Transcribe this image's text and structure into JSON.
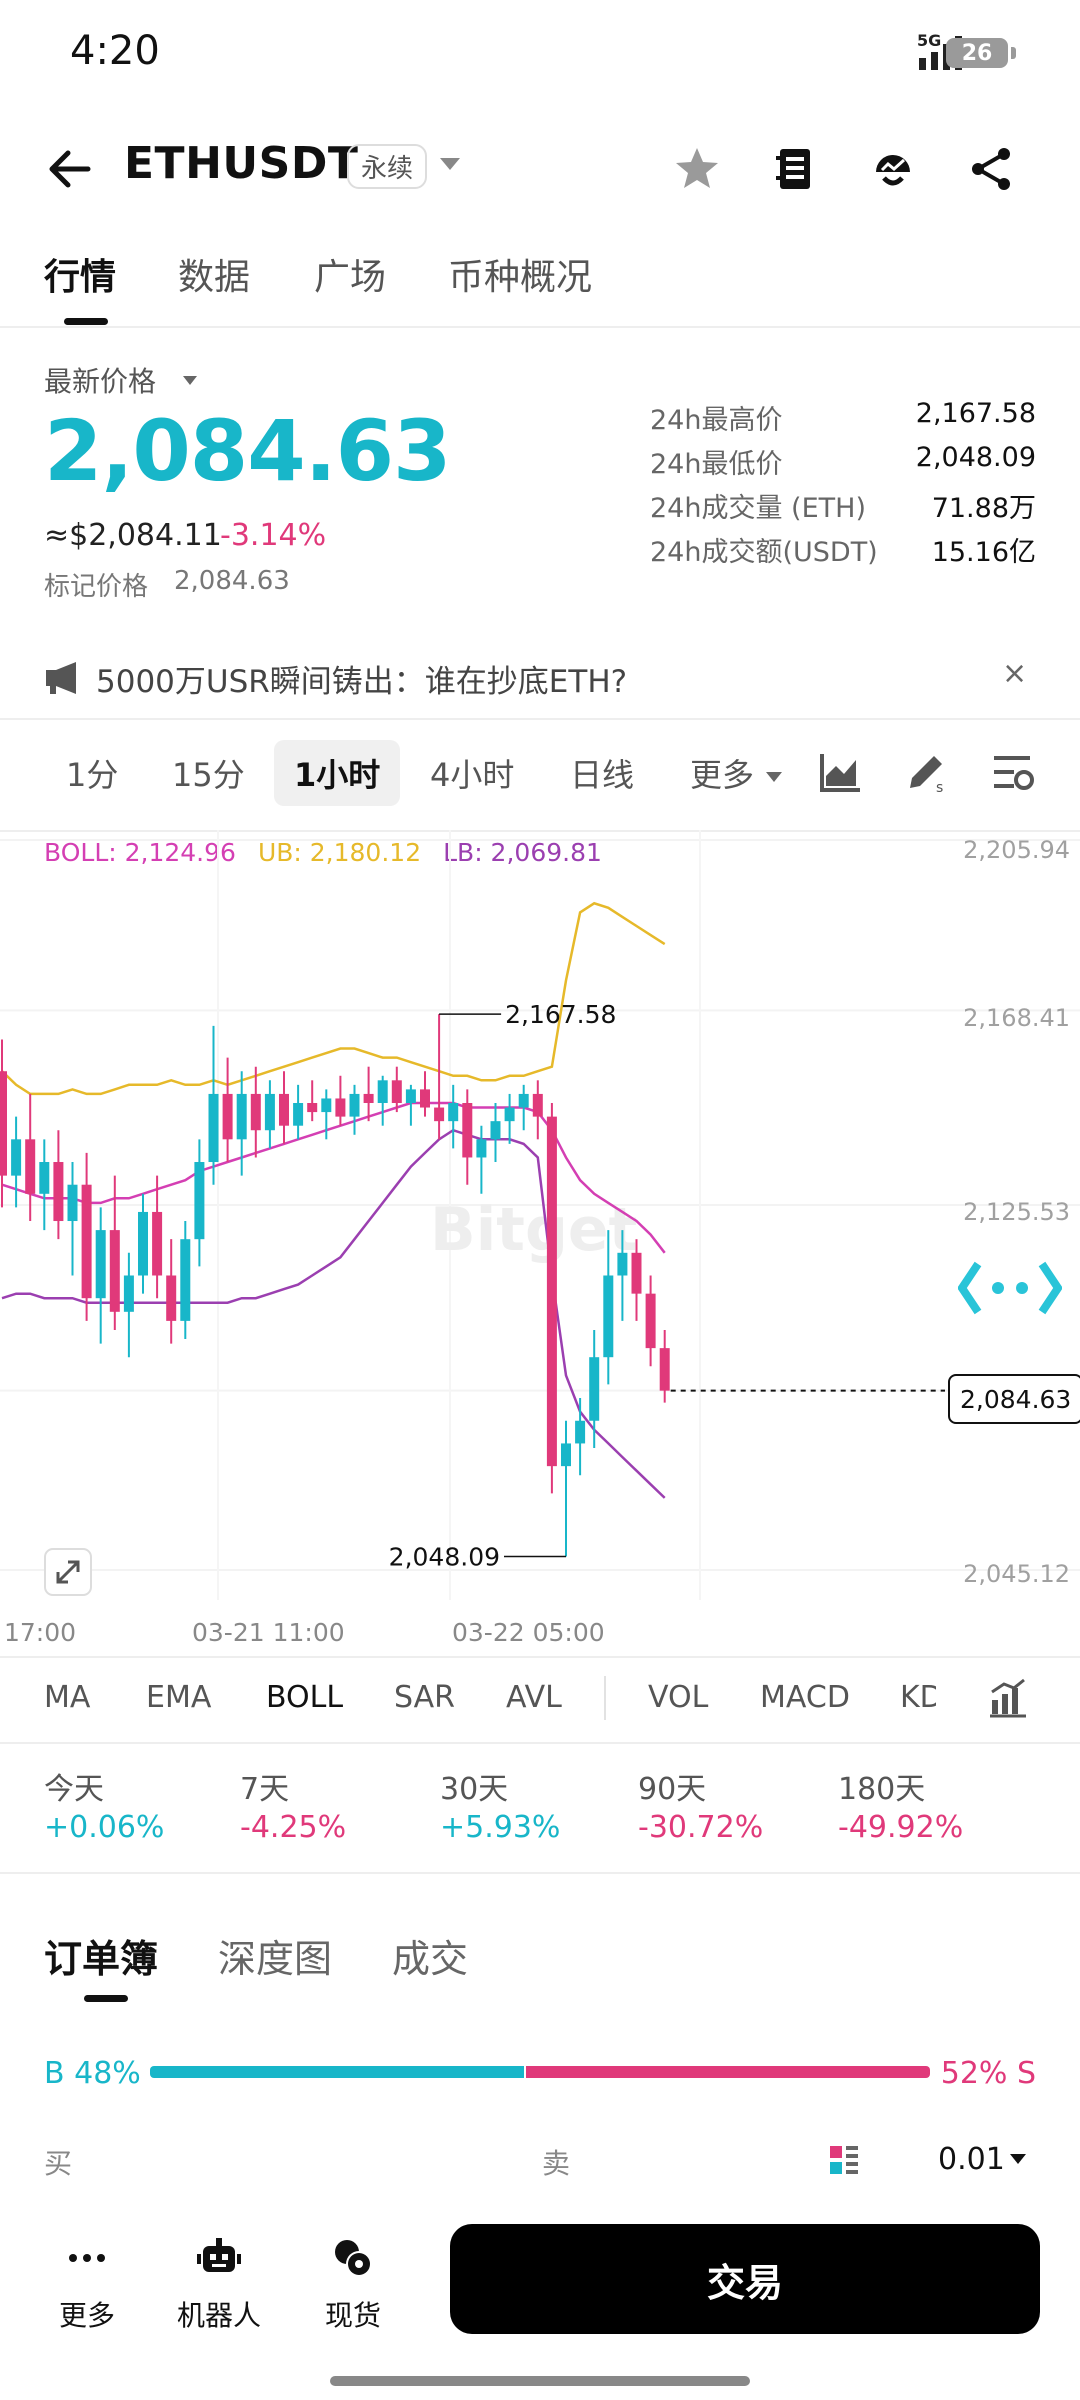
{
  "status_bar": {
    "time": "4:20",
    "network": "5G",
    "battery": "26"
  },
  "header": {
    "symbol": "ETHUSDT",
    "badge": "永续"
  },
  "main_tabs": [
    "行情",
    "数据",
    "广场",
    "币种概况"
  ],
  "price": {
    "label": "最新价格",
    "last": "2,084.63",
    "usd": "≈$2,084.11",
    "change": "-3.14%",
    "mark_label": "标记价格",
    "mark_value": "2,084.63"
  },
  "stats": [
    {
      "label": "24h最高价",
      "value": "2,167.58"
    },
    {
      "label": "24h最低价",
      "value": "2,048.09"
    },
    {
      "label": "24h成交量 (ETH)",
      "value": "71.88万"
    },
    {
      "label": "24h成交额(USDT)",
      "value": "15.16亿"
    }
  ],
  "news": {
    "text": "5000万USR瞬间铸出：谁在抄底ETH?",
    "close": "×"
  },
  "timeframes": [
    "1分",
    "15分",
    "1小时",
    "4小时",
    "日线",
    "更多"
  ],
  "timeframe_active": "1小时",
  "boll": {
    "boll": "BOLL: 2,124.96",
    "ub": "UB: 2,180.12",
    "lb": "LB: 2,069.81"
  },
  "colors": {
    "up": "#18b6c9",
    "down": "#e0397a",
    "ub": "#e6b92a",
    "mid": "#d43fb3",
    "lb": "#9b3fb0"
  },
  "chart_data": {
    "type": "candlestick",
    "y_axis_labels": [
      "2,205.94",
      "2,168.41",
      "2,125.53",
      "2,084.63",
      "2,045.12"
    ],
    "ylim": [
      2045.12,
      2205.94
    ],
    "x_tick_labels": [
      "17:00",
      "03-21 11:00",
      "03-22 05:00"
    ],
    "high_marker": "2,167.58",
    "low_marker": "2,048.09",
    "last_price_tag": "2,084.63",
    "watermark": "Bitget",
    "candles": [
      [
        2155,
        2162,
        2125,
        2132
      ],
      [
        2132,
        2145,
        2125,
        2140
      ],
      [
        2140,
        2150,
        2122,
        2128
      ],
      [
        2128,
        2140,
        2120,
        2135
      ],
      [
        2135,
        2142,
        2118,
        2122
      ],
      [
        2122,
        2135,
        2110,
        2130
      ],
      [
        2130,
        2137,
        2100,
        2105
      ],
      [
        2105,
        2125,
        2095,
        2120
      ],
      [
        2120,
        2132,
        2098,
        2102
      ],
      [
        2102,
        2115,
        2092,
        2110
      ],
      [
        2110,
        2128,
        2106,
        2124
      ],
      [
        2124,
        2132,
        2105,
        2110
      ],
      [
        2110,
        2118,
        2095,
        2100
      ],
      [
        2100,
        2122,
        2096,
        2118
      ],
      [
        2118,
        2140,
        2112,
        2135
      ],
      [
        2135,
        2165,
        2130,
        2150
      ],
      [
        2150,
        2158,
        2135,
        2140
      ],
      [
        2140,
        2155,
        2132,
        2150
      ],
      [
        2150,
        2156,
        2136,
        2142
      ],
      [
        2142,
        2153,
        2138,
        2150
      ],
      [
        2150,
        2155,
        2139,
        2143
      ],
      [
        2143,
        2152,
        2140,
        2148
      ],
      [
        2148,
        2153,
        2144,
        2146
      ],
      [
        2146,
        2151,
        2140,
        2149
      ],
      [
        2149,
        2154,
        2143,
        2145
      ],
      [
        2145,
        2152,
        2141,
        2150
      ],
      [
        2150,
        2156,
        2144,
        2148
      ],
      [
        2148,
        2154,
        2143,
        2153
      ],
      [
        2153,
        2156,
        2146,
        2148
      ],
      [
        2148,
        2152,
        2143,
        2151
      ],
      [
        2151,
        2155,
        2145,
        2147
      ],
      [
        2147,
        2167.58,
        2140,
        2144
      ],
      [
        2144,
        2152,
        2138,
        2148
      ],
      [
        2148,
        2151,
        2130,
        2136
      ],
      [
        2136,
        2143,
        2128,
        2140
      ],
      [
        2140,
        2148,
        2135,
        2144
      ],
      [
        2144,
        2150,
        2139,
        2147
      ],
      [
        2147,
        2152,
        2142,
        2150
      ],
      [
        2150,
        2153,
        2140,
        2145
      ],
      [
        2145,
        2148,
        2062,
        2068
      ],
      [
        2068,
        2078,
        2048.09,
        2073
      ],
      [
        2073,
        2083,
        2066,
        2078
      ],
      [
        2078,
        2098,
        2072,
        2092
      ],
      [
        2092,
        2120,
        2086,
        2110
      ],
      [
        2110,
        2120,
        2100,
        2115
      ],
      [
        2115,
        2118,
        2100,
        2106
      ],
      [
        2106,
        2110,
        2090,
        2094
      ],
      [
        2094,
        2098,
        2082,
        2084.63
      ]
    ],
    "ub_line": [
      2155,
      2152,
      2150,
      2150,
      2150,
      2151,
      2150,
      2150,
      2151,
      2152,
      2152,
      2152,
      2153,
      2152,
      2152,
      2153,
      2152,
      2153,
      2154,
      2155,
      2156,
      2157,
      2158,
      2159,
      2160,
      2160,
      2159,
      2158,
      2158,
      2157,
      2156,
      2155,
      2154,
      2154,
      2153,
      2153,
      2154,
      2154,
      2155,
      2156,
      2175,
      2190,
      2192,
      2191,
      2189,
      2187,
      2185,
      2183
    ],
    "mid_line": [
      2130,
      2129,
      2128,
      2127,
      2127,
      2127,
      2126,
      2126,
      2127,
      2127,
      2128,
      2129,
      2130,
      2131,
      2133,
      2134,
      2135,
      2136,
      2137,
      2138,
      2139,
      2140,
      2141,
      2142,
      2143,
      2144,
      2145,
      2146,
      2147,
      2148,
      2148,
      2148,
      2148,
      2147,
      2147,
      2147,
      2147,
      2147,
      2146,
      2142,
      2136,
      2131,
      2128,
      2126,
      2124,
      2122,
      2119,
      2115
    ],
    "lb_line": [
      2105,
      2106,
      2106,
      2105,
      2105,
      2105,
      2104,
      2104,
      2104,
      2104,
      2104,
      2104,
      2104,
      2104,
      2104,
      2104,
      2104,
      2105,
      2105,
      2106,
      2107,
      2108,
      2110,
      2112,
      2114,
      2118,
      2122,
      2126,
      2130,
      2134,
      2137,
      2140,
      2142,
      2141,
      2140,
      2140,
      2140,
      2139,
      2136,
      2110,
      2088,
      2080,
      2076,
      2073,
      2070,
      2067,
      2064,
      2061
    ]
  },
  "indicators": [
    "MA",
    "EMA",
    "BOLL",
    "SAR",
    "AVL",
    "VOL",
    "MACD",
    "KD"
  ],
  "indicator_active": "BOLL",
  "performance": [
    {
      "label": "今天",
      "value": "+0.06%",
      "dir": "up"
    },
    {
      "label": "7天",
      "value": "-4.25%",
      "dir": "down"
    },
    {
      "label": "30天",
      "value": "+5.93%",
      "dir": "up"
    },
    {
      "label": "90天",
      "value": "-30.72%",
      "dir": "down"
    },
    {
      "label": "180天",
      "value": "-49.92%",
      "dir": "down"
    }
  ],
  "orderbook": {
    "tabs": [
      "订单簿",
      "深度图",
      "成交"
    ],
    "buy_ratio": "B 48%",
    "sell_ratio": "52% S",
    "buy_fraction": 0.48,
    "buy_label": "买",
    "sell_label": "卖",
    "precision": "0.01"
  },
  "bottom_bar": {
    "more": "更多",
    "bot": "机器人",
    "spot": "现货",
    "trade": "交易"
  }
}
